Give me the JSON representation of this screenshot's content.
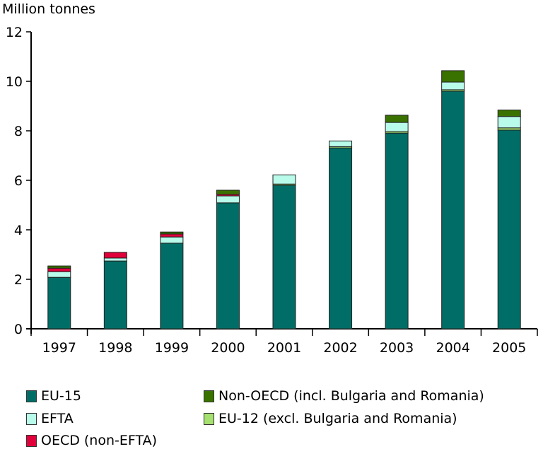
{
  "chart_data": {
    "type": "bar",
    "stacked": true,
    "title": "",
    "ylabel": "Million tonnes",
    "xlabel": "",
    "ylim": [
      0,
      12
    ],
    "yticks": [
      0,
      2,
      4,
      6,
      8,
      10,
      12
    ],
    "grid": false,
    "legend_position": "bottom",
    "categories": [
      "1997",
      "1998",
      "1999",
      "2000",
      "2001",
      "2002",
      "2003",
      "2004",
      "2005"
    ],
    "series": [
      {
        "name": "EU-15",
        "color": "#006e66",
        "values": [
          2.08,
          2.74,
          3.46,
          5.09,
          5.8,
          7.31,
          7.91,
          9.6,
          8.03
        ]
      },
      {
        "name": "EU-12 (excl. Bulgaria and Romania)",
        "color": "#a6e070",
        "values": [
          0.0,
          0.0,
          0.0,
          0.0,
          0.05,
          0.05,
          0.06,
          0.06,
          0.09
        ]
      },
      {
        "name": "EFTA",
        "color": "#b8fbea",
        "values": [
          0.23,
          0.12,
          0.25,
          0.28,
          0.37,
          0.23,
          0.37,
          0.31,
          0.46
        ]
      },
      {
        "name": "OECD (non-EFTA)",
        "color": "#e0003a",
        "values": [
          0.14,
          0.23,
          0.12,
          0.06,
          0.0,
          0.0,
          0.0,
          0.0,
          0.0
        ]
      },
      {
        "name": "Non-OECD (incl. Bulgaria and Romania)",
        "color": "#3a7200",
        "values": [
          0.09,
          0.0,
          0.08,
          0.17,
          0.0,
          0.0,
          0.29,
          0.46,
          0.26
        ]
      }
    ],
    "legend": [
      {
        "name": "EU-15",
        "color": "#006e66"
      },
      {
        "name": "EFTA",
        "color": "#b8fbea"
      },
      {
        "name": "OECD (non-EFTA)",
        "color": "#e0003a"
      },
      {
        "name": "Non-OECD (incl. Bulgaria and Romania)",
        "color": "#3a7200"
      },
      {
        "name": "EU-12 (excl. Bulgaria and Romania)",
        "color": "#a6e070"
      }
    ]
  }
}
